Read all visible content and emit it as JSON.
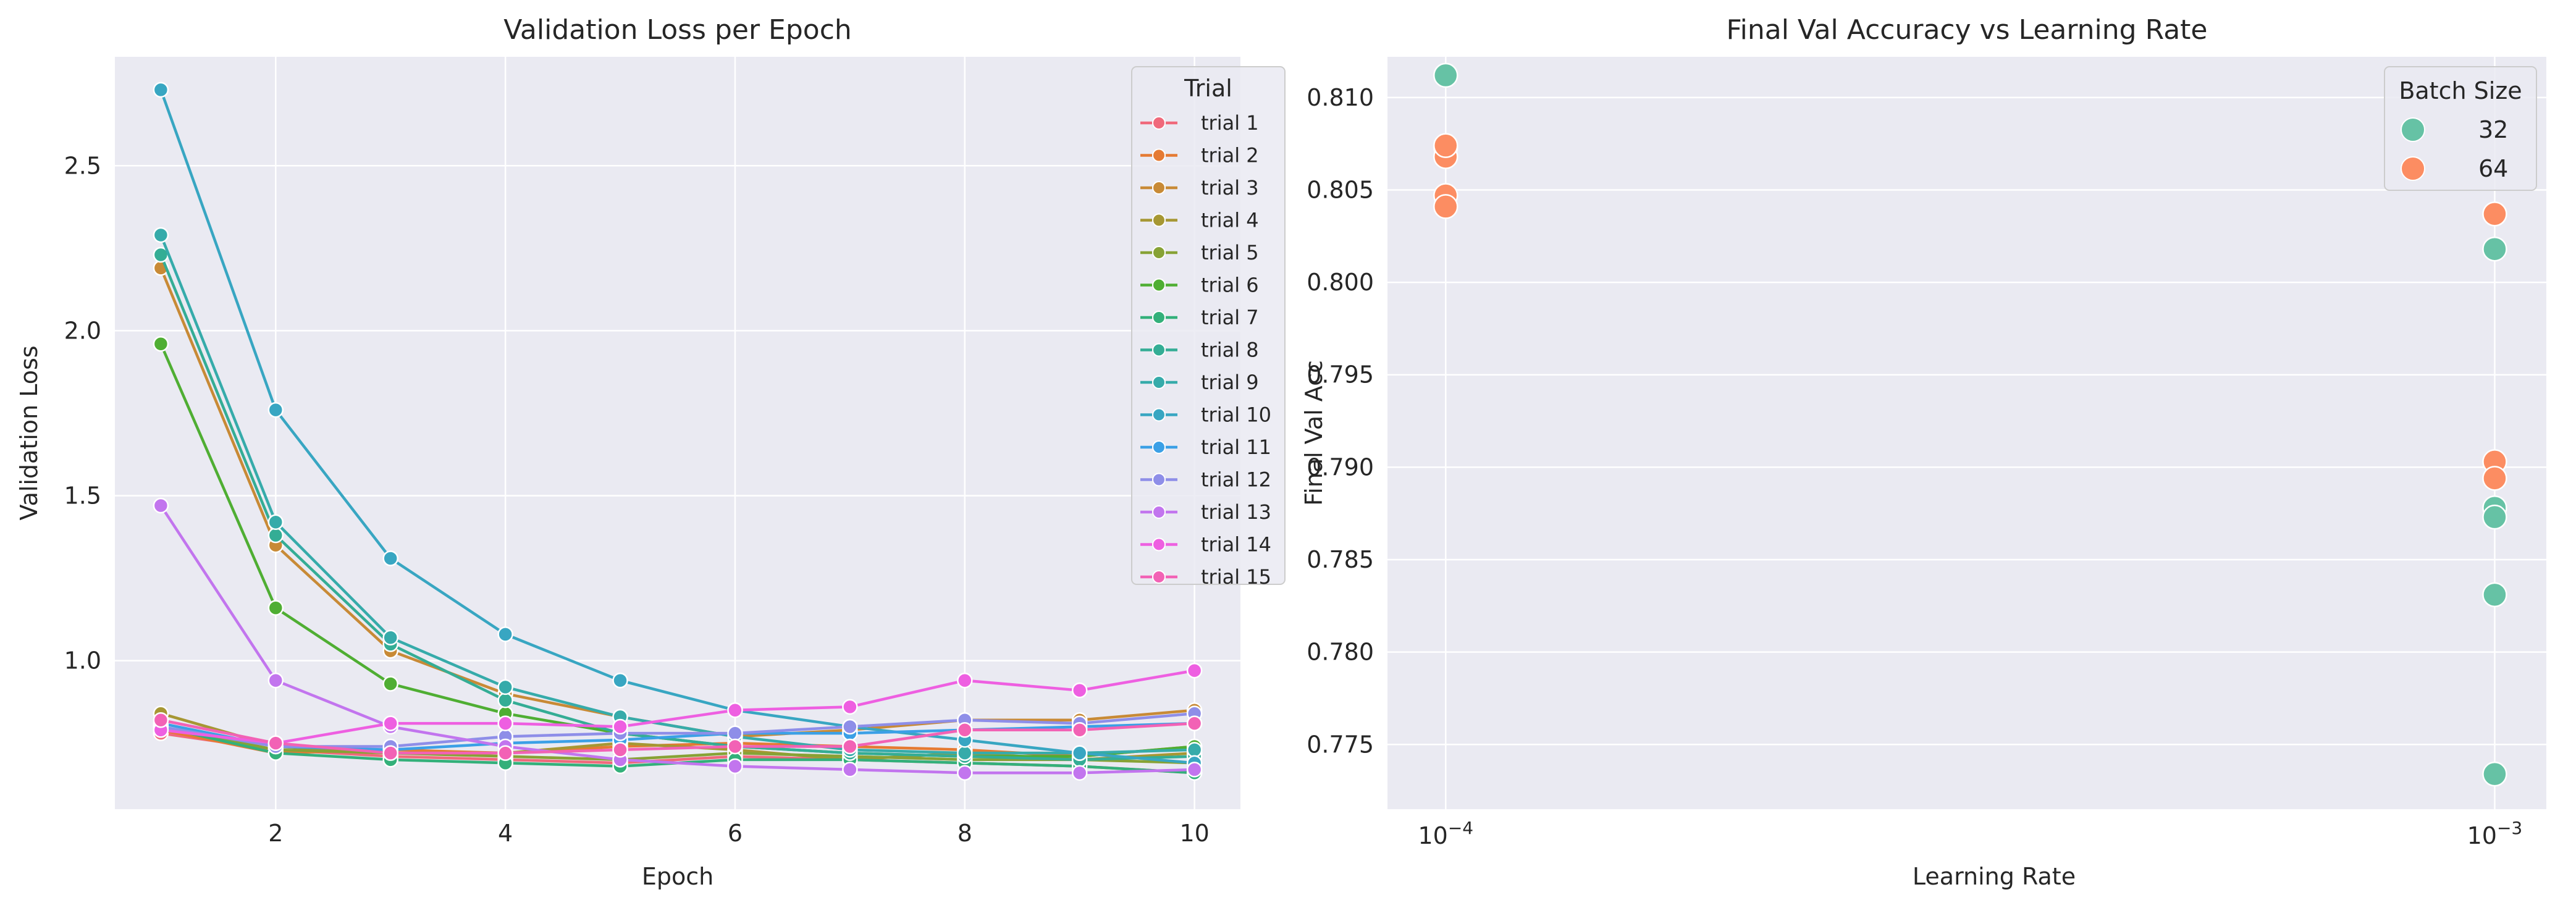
{
  "chart_data": [
    {
      "type": "line",
      "title": "Validation Loss per Epoch",
      "xlabel": "Epoch",
      "ylabel": "Validation Loss",
      "xlim": [
        0.6,
        10.4
      ],
      "ylim": [
        0.55,
        2.83
      ],
      "xticks": [
        2,
        4,
        6,
        8,
        10
      ],
      "yticks": [
        1.0,
        1.5,
        2.0,
        2.5
      ],
      "ytick_labels": [
        "1.0",
        "1.5",
        "2.0",
        "2.5"
      ],
      "grid": true,
      "legend": {
        "title": "Trial",
        "position": "top-right"
      },
      "x": [
        1,
        2,
        3,
        4,
        5,
        6,
        7,
        8,
        9,
        10
      ],
      "series": [
        {
          "name": "trial 1",
          "color": "#f0697b",
          "values": [
            0.78,
            0.73,
            0.71,
            0.7,
            0.69,
            0.71,
            0.7,
            0.69,
            0.68,
            0.66
          ]
        },
        {
          "name": "trial 2",
          "color": "#e57a33",
          "values": [
            0.79,
            0.72,
            0.73,
            0.72,
            0.74,
            0.75,
            0.74,
            0.73,
            0.71,
            0.74
          ]
        },
        {
          "name": "trial 3",
          "color": "#c88a36",
          "values": [
            2.19,
            1.35,
            1.03,
            0.9,
            0.83,
            0.77,
            0.79,
            0.82,
            0.82,
            0.85
          ]
        },
        {
          "name": "trial 4",
          "color": "#a69733",
          "values": [
            0.84,
            0.74,
            0.72,
            0.72,
            0.75,
            0.73,
            0.7,
            0.72,
            0.7,
            0.72
          ]
        },
        {
          "name": "trial 5",
          "color": "#87a235",
          "values": [
            0.8,
            0.73,
            0.72,
            0.71,
            0.7,
            0.72,
            0.71,
            0.7,
            0.7,
            0.69
          ]
        },
        {
          "name": "trial 6",
          "color": "#4fae33",
          "values": [
            1.96,
            1.16,
            0.93,
            0.84,
            0.78,
            0.74,
            0.72,
            0.71,
            0.71,
            0.74
          ]
        },
        {
          "name": "trial 7",
          "color": "#33b07a",
          "values": [
            0.8,
            0.72,
            0.7,
            0.69,
            0.68,
            0.7,
            0.7,
            0.69,
            0.68,
            0.66
          ]
        },
        {
          "name": "trial 8",
          "color": "#34ad95",
          "values": [
            2.23,
            1.38,
            1.05,
            0.88,
            0.78,
            0.74,
            0.72,
            0.71,
            0.7,
            0.71
          ]
        },
        {
          "name": "trial 9",
          "color": "#36abaa",
          "values": [
            2.29,
            1.42,
            1.07,
            0.92,
            0.83,
            0.77,
            0.73,
            0.72,
            0.72,
            0.73
          ]
        },
        {
          "name": "trial 10",
          "color": "#38a6c2",
          "values": [
            2.73,
            1.76,
            1.31,
            1.08,
            0.94,
            0.85,
            0.8,
            0.76,
            0.72,
            0.69
          ]
        },
        {
          "name": "trial 11",
          "color": "#3ba0e6",
          "values": [
            0.81,
            0.74,
            0.73,
            0.75,
            0.76,
            0.78,
            0.78,
            0.79,
            0.8,
            0.81
          ]
        },
        {
          "name": "trial 12",
          "color": "#8e8ee8",
          "values": [
            0.8,
            0.74,
            0.74,
            0.77,
            0.78,
            0.78,
            0.8,
            0.82,
            0.81,
            0.84
          ]
        },
        {
          "name": "trial 13",
          "color": "#c275ee",
          "values": [
            1.47,
            0.94,
            0.8,
            0.74,
            0.7,
            0.68,
            0.67,
            0.66,
            0.66,
            0.67
          ]
        },
        {
          "name": "trial 14",
          "color": "#ee5fe1",
          "values": [
            0.79,
            0.75,
            0.81,
            0.81,
            0.8,
            0.85,
            0.86,
            0.94,
            0.91,
            0.97
          ]
        },
        {
          "name": "trial 15",
          "color": "#f262b5",
          "values": [
            0.82,
            0.75,
            0.72,
            0.72,
            0.73,
            0.74,
            0.74,
            0.79,
            0.79,
            0.81
          ]
        }
      ]
    },
    {
      "type": "scatter",
      "title": "Final Val Accuracy vs Learning Rate",
      "xlabel": "Learning Rate",
      "ylabel": "Final Val Acc",
      "xscale": "log",
      "xlim": [
        8.8e-05,
        0.00112
      ],
      "ylim": [
        0.7715,
        0.8122
      ],
      "xticks": [
        0.0001,
        0.001
      ],
      "xtick_labels": [
        {
          "base": "10",
          "exp": "−4"
        },
        {
          "base": "10",
          "exp": "−3"
        }
      ],
      "yticks": [
        0.775,
        0.78,
        0.785,
        0.79,
        0.795,
        0.8,
        0.805,
        0.81
      ],
      "ytick_labels": [
        "0.775",
        "0.780",
        "0.785",
        "0.790",
        "0.795",
        "0.800",
        "0.805",
        "0.810"
      ],
      "grid": true,
      "legend": {
        "title": "Batch Size",
        "position": "top-right"
      },
      "series": [
        {
          "name": "32",
          "color": "#66c2a5",
          "points": [
            {
              "x": 0.0001,
              "y": 0.8112
            },
            {
              "x": 0.0001,
              "y": 0.8073
            },
            {
              "x": 0.001,
              "y": 0.8018
            },
            {
              "x": 0.001,
              "y": 0.7878
            },
            {
              "x": 0.001,
              "y": 0.7873
            },
            {
              "x": 0.001,
              "y": 0.7831
            },
            {
              "x": 0.001,
              "y": 0.7734
            }
          ]
        },
        {
          "name": "64",
          "color": "#fc8d62",
          "points": [
            {
              "x": 0.0001,
              "y": 0.8068
            },
            {
              "x": 0.0001,
              "y": 0.8074
            },
            {
              "x": 0.0001,
              "y": 0.8047
            },
            {
              "x": 0.0001,
              "y": 0.8041
            },
            {
              "x": 0.001,
              "y": 0.8037
            },
            {
              "x": 0.001,
              "y": 0.7903
            },
            {
              "x": 0.001,
              "y": 0.7894
            }
          ]
        }
      ]
    }
  ]
}
